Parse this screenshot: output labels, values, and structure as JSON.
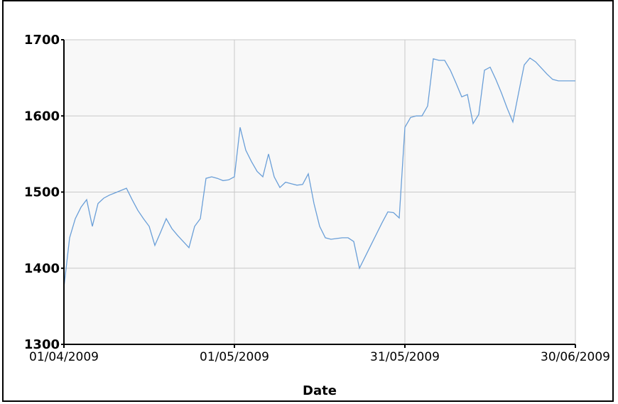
{
  "chart_data": {
    "type": "line",
    "title": "",
    "xlabel": "Date",
    "ylabel": "",
    "ylim": [
      1300,
      1700
    ],
    "xlim": [
      "2009-04-01",
      "2009-06-30"
    ],
    "grid": true,
    "legend": "none",
    "yticks": [
      "1300",
      "1400",
      "1500",
      "1600",
      "1700"
    ],
    "xticks": [
      {
        "date": "2009-04-01",
        "label": "01/04/2009"
      },
      {
        "date": "2009-05-01",
        "label": "01/05/2009"
      },
      {
        "date": "2009-05-31",
        "label": "31/05/2009"
      },
      {
        "date": "2009-06-30",
        "label": "30/06/2009"
      }
    ],
    "colors": {
      "line": "#6a9fd8",
      "plot_bg": "#f8f8f8",
      "grid": "#c8c8c8",
      "axis": "#000000"
    },
    "series": [
      {
        "x": [
          "2009-04-01",
          "2009-04-02",
          "2009-04-03",
          "2009-04-04",
          "2009-04-05",
          "2009-04-06",
          "2009-04-07",
          "2009-04-08",
          "2009-04-09",
          "2009-04-10",
          "2009-04-11",
          "2009-04-12",
          "2009-04-13",
          "2009-04-14",
          "2009-04-15",
          "2009-04-16",
          "2009-04-17",
          "2009-04-18",
          "2009-04-19",
          "2009-04-20",
          "2009-04-21",
          "2009-04-22",
          "2009-04-23",
          "2009-04-24",
          "2009-04-25",
          "2009-04-26",
          "2009-04-27",
          "2009-04-28",
          "2009-04-29",
          "2009-04-30",
          "2009-05-01",
          "2009-05-02",
          "2009-05-03",
          "2009-05-04",
          "2009-05-05",
          "2009-05-06",
          "2009-05-07",
          "2009-05-08",
          "2009-05-09",
          "2009-05-10",
          "2009-05-11",
          "2009-05-12",
          "2009-05-13",
          "2009-05-14",
          "2009-05-15",
          "2009-05-16",
          "2009-05-17",
          "2009-05-18",
          "2009-05-19",
          "2009-05-20",
          "2009-05-21",
          "2009-05-22",
          "2009-05-23",
          "2009-05-24",
          "2009-05-25",
          "2009-05-26",
          "2009-05-27",
          "2009-05-28",
          "2009-05-29",
          "2009-05-30",
          "2009-05-31",
          "2009-06-01",
          "2009-06-02",
          "2009-06-03",
          "2009-06-04",
          "2009-06-05",
          "2009-06-06",
          "2009-06-07",
          "2009-06-08",
          "2009-06-09",
          "2009-06-10",
          "2009-06-11",
          "2009-06-12",
          "2009-06-13",
          "2009-06-14",
          "2009-06-15",
          "2009-06-16",
          "2009-06-17",
          "2009-06-18",
          "2009-06-19",
          "2009-06-20",
          "2009-06-21",
          "2009-06-22",
          "2009-06-23",
          "2009-06-24",
          "2009-06-25",
          "2009-06-26",
          "2009-06-27",
          "2009-06-28",
          "2009-06-29",
          "2009-06-30"
        ],
        "values": [
          1375,
          1440,
          1465,
          1480,
          1490,
          1455,
          1485,
          1492,
          1496,
          1499,
          1502,
          1505,
          1490,
          1476,
          1465,
          1455,
          1430,
          1447,
          1465,
          1452,
          1443,
          1435,
          1427,
          1455,
          1465,
          1518,
          1520,
          1518,
          1515,
          1516,
          1520,
          1585,
          1555,
          1540,
          1527,
          1520,
          1550,
          1520,
          1506,
          1513,
          1511,
          1509,
          1510,
          1524,
          1485,
          1455,
          1440,
          1438,
          1439,
          1440,
          1440,
          1435,
          1400,
          1415,
          1430,
          1445,
          1460,
          1474,
          1473,
          1466,
          1585,
          1598,
          1600,
          1600,
          1613,
          1675,
          1673,
          1673,
          1660,
          1643,
          1625,
          1628,
          1590,
          1602,
          1660,
          1664,
          1648,
          1630,
          1610,
          1592,
          1630,
          1667,
          1676,
          1671,
          1663,
          1655,
          1648,
          1646,
          1646,
          1646,
          1646
        ]
      }
    ]
  }
}
